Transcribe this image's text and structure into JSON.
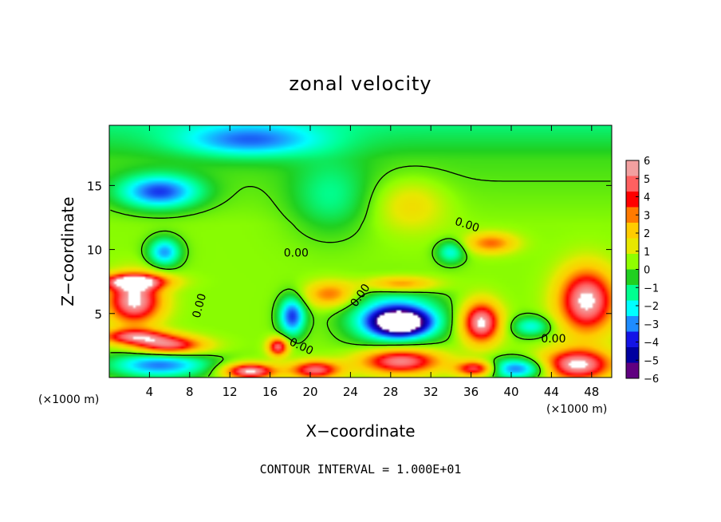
{
  "chart_data": {
    "type": "heatmap",
    "title": "zonal velocity",
    "xlabel": "X−coordinate",
    "ylabel": "Z−coordinate",
    "x_unit_left": "(×1000 m)",
    "x_unit_right": "(×1000 m)",
    "xlim": [
      0,
      50
    ],
    "ylim": [
      0,
      19.7
    ],
    "x_ticks": [
      4,
      8,
      12,
      16,
      20,
      24,
      28,
      32,
      36,
      40,
      44,
      48
    ],
    "x_tick_labels": [
      "4",
      "8",
      "12",
      "16",
      "20",
      "24",
      "28",
      "32",
      "36",
      "40",
      "44",
      "48"
    ],
    "y_ticks": [
      5,
      10,
      15
    ],
    "y_tick_labels": [
      "5",
      "10",
      "15"
    ],
    "colorbar": {
      "ticks": [
        6,
        5,
        4,
        3,
        2,
        1,
        0,
        -1,
        -2,
        -3,
        -4,
        -5,
        -6
      ],
      "labels": [
        "6",
        "5",
        "4",
        "3",
        "2",
        "1",
        "0",
        "−1",
        "−2",
        "−3",
        "−4",
        "−5",
        "−6"
      ],
      "colors": [
        "#f2a0a0",
        "#ff6060",
        "#ff0000",
        "#ff7a00",
        "#ffcc00",
        "#e8e800",
        "#90ff00",
        "#20d020",
        "#00ff90",
        "#00ffff",
        "#1e8cff",
        "#1414e6",
        "#0000a0",
        "#600080"
      ],
      "range": [
        -6,
        6
      ]
    },
    "contour_labels": [
      {
        "text": "0.00",
        "x": 18.6,
        "y": 9.7,
        "angle": 0
      },
      {
        "text": "0.00",
        "x": 35.6,
        "y": 11.9,
        "angle": 18
      },
      {
        "text": "0.00",
        "x": 9.0,
        "y": 5.6,
        "angle": -75
      },
      {
        "text": "0.00",
        "x": 19.1,
        "y": 2.4,
        "angle": 25
      },
      {
        "text": "0.00",
        "x": 25.0,
        "y": 6.4,
        "angle": -55
      },
      {
        "text": "0.00",
        "x": 44.2,
        "y": 3.0,
        "angle": 0
      }
    ],
    "field_features": [
      {
        "x": 5.5,
        "y": 9.8,
        "rx": 1.6,
        "ry": 1.1,
        "v": -3.5
      },
      {
        "x": 5.0,
        "y": 14.5,
        "rx": 4.0,
        "ry": 1.3,
        "v": -4.0
      },
      {
        "x": 14.0,
        "y": 18.5,
        "rx": 7.0,
        "ry": 1.3,
        "v": -2.8
      },
      {
        "x": 22.0,
        "y": 14.0,
        "rx": 4.0,
        "ry": 3.0,
        "v": -1.5
      },
      {
        "x": 30.0,
        "y": 13.5,
        "rx": 3.5,
        "ry": 2.0,
        "v": 1.5
      },
      {
        "x": 34.0,
        "y": 9.8,
        "rx": 1.4,
        "ry": 0.9,
        "v": -2.5
      },
      {
        "x": 38.0,
        "y": 10.5,
        "rx": 2.5,
        "ry": 0.8,
        "v": 3.0
      },
      {
        "x": 2.5,
        "y": 6.0,
        "rx": 2.7,
        "ry": 1.8,
        "v": 6.0
      },
      {
        "x": 2.5,
        "y": 7.5,
        "rx": 3.5,
        "ry": 0.6,
        "v": 5.0
      },
      {
        "x": 2.5,
        "y": 3.2,
        "rx": 3.5,
        "ry": 0.6,
        "v": 4.5
      },
      {
        "x": 6.0,
        "y": 2.5,
        "rx": 3.5,
        "ry": 0.7,
        "v": 5.0
      },
      {
        "x": 5.0,
        "y": 1.0,
        "rx": 5.0,
        "ry": 1.0,
        "v": -3.8
      },
      {
        "x": 18.2,
        "y": 4.8,
        "rx": 1.3,
        "ry": 1.5,
        "v": -4.3
      },
      {
        "x": 16.8,
        "y": 2.4,
        "rx": 1.0,
        "ry": 0.7,
        "v": 5.0
      },
      {
        "x": 14.0,
        "y": 0.5,
        "rx": 2.5,
        "ry": 0.6,
        "v": 6.0
      },
      {
        "x": 20.5,
        "y": 0.6,
        "rx": 2.5,
        "ry": 0.7,
        "v": 5.0
      },
      {
        "x": 22.0,
        "y": 6.5,
        "rx": 2.5,
        "ry": 1.0,
        "v": 3.0
      },
      {
        "x": 28.5,
        "y": 4.6,
        "rx": 4.5,
        "ry": 2.0,
        "v": -4.2
      },
      {
        "x": 29.0,
        "y": 4.3,
        "rx": 2.6,
        "ry": 0.9,
        "v": -6.5
      },
      {
        "x": 29.0,
        "y": 7.3,
        "rx": 3.5,
        "ry": 0.6,
        "v": 3.0
      },
      {
        "x": 29.0,
        "y": 1.3,
        "rx": 4.0,
        "ry": 1.0,
        "v": 5.5
      },
      {
        "x": 37.0,
        "y": 4.3,
        "rx": 1.9,
        "ry": 1.6,
        "v": 6.0
      },
      {
        "x": 40.5,
        "y": 0.7,
        "rx": 3.2,
        "ry": 0.8,
        "v": -4.0
      },
      {
        "x": 36.5,
        "y": 0.7,
        "rx": 2.0,
        "ry": 0.6,
        "v": 5.0
      },
      {
        "x": 47.5,
        "y": 6.0,
        "rx": 2.8,
        "ry": 2.5,
        "v": 6.0
      },
      {
        "x": 46.5,
        "y": 1.0,
        "rx": 3.5,
        "ry": 1.2,
        "v": 6.0
      },
      {
        "x": 42.0,
        "y": 4.0,
        "rx": 2.0,
        "ry": 0.8,
        "v": -2.5
      }
    ],
    "footer": "CONTOUR INTERVAL = 1.000E+01"
  }
}
